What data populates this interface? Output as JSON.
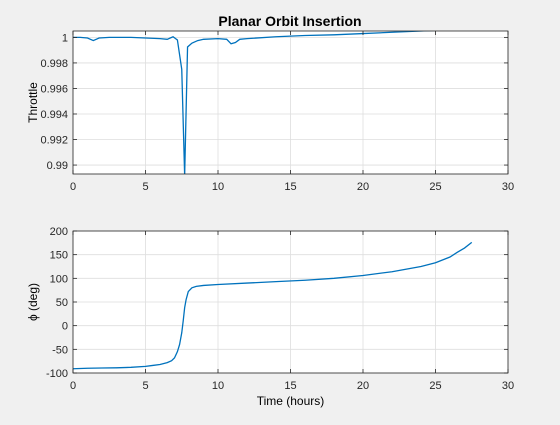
{
  "figure_title": "Planar Orbit Insertion",
  "colors": {
    "figure_background": "#f0f0f0",
    "axes_background": "#ffffff",
    "line": "#0072bd",
    "grid": "#dedede",
    "axis": "#262626"
  },
  "chart_data": [
    {
      "type": "line",
      "title": "Planar Orbit Insertion",
      "xlabel": "",
      "ylabel": "Throttle",
      "xlim": [
        0,
        30
      ],
      "ylim": [
        0.9893,
        1.0005
      ],
      "xticks": [
        0,
        5,
        10,
        15,
        20,
        25,
        30
      ],
      "xtick_labels": [
        "0",
        "5",
        "10",
        "15",
        "20",
        "25",
        "30"
      ],
      "yticks": [
        0.99,
        0.992,
        0.994,
        0.996,
        0.998,
        1
      ],
      "ytick_labels": [
        "0.99",
        "0.992",
        "0.994",
        "0.996",
        "0.998",
        "1"
      ],
      "grid": true,
      "series": [
        {
          "x": [
            0,
            0.5,
            1.0,
            1.4,
            1.8,
            2.5,
            4.0,
            5.0,
            6.0,
            6.5,
            6.9,
            7.2,
            7.5,
            7.7,
            7.9,
            8.2,
            8.6,
            9.0,
            10.0,
            10.6,
            10.9,
            11.2,
            11.5,
            12.0,
            14.0,
            16.0,
            18.0,
            20.0,
            22.0,
            24.0,
            26.0,
            27.5
          ],
          "y": [
            1.0,
            1.0,
            0.99995,
            0.99975,
            0.99995,
            1.0,
            1.0,
            0.99995,
            0.9999,
            0.99985,
            1.00005,
            0.9998,
            0.9975,
            0.9892,
            0.99925,
            0.99955,
            0.99975,
            0.99985,
            0.9999,
            0.99985,
            0.9995,
            0.9996,
            0.99985,
            0.9999,
            1.00005,
            1.00015,
            1.0002,
            1.0003,
            1.0004,
            1.0005,
            1.0006,
            1.0007
          ]
        }
      ]
    },
    {
      "type": "line",
      "title": "",
      "xlabel": "Time (hours)",
      "ylabel": "ϕ (deg)",
      "xlim": [
        0,
        30
      ],
      "ylim": [
        -100,
        200
      ],
      "xticks": [
        0,
        5,
        10,
        15,
        20,
        25,
        30
      ],
      "xtick_labels": [
        "0",
        "5",
        "10",
        "15",
        "20",
        "25",
        "30"
      ],
      "yticks": [
        -100,
        -50,
        0,
        50,
        100,
        150,
        200
      ],
      "ytick_labels": [
        "-100",
        "-50",
        "0",
        "50",
        "100",
        "150",
        "200"
      ],
      "grid": true,
      "series": [
        {
          "x": [
            0,
            1,
            2,
            3,
            4,
            5,
            5.5,
            6,
            6.5,
            6.8,
            7.0,
            7.2,
            7.35,
            7.5,
            7.6,
            7.7,
            7.8,
            7.95,
            8.2,
            8.5,
            9,
            10,
            12,
            14,
            16,
            18,
            20,
            22,
            24,
            25,
            26,
            26.5,
            27,
            27.5
          ],
          "y": [
            -91,
            -90,
            -89.5,
            -89,
            -88,
            -86,
            -84,
            -82,
            -78,
            -74,
            -68,
            -55,
            -40,
            -15,
            10,
            38,
            55,
            72,
            80,
            83,
            85,
            87,
            90,
            93,
            96,
            100,
            106,
            114,
            125,
            133,
            145,
            155,
            164,
            176
          ]
        }
      ]
    }
  ]
}
